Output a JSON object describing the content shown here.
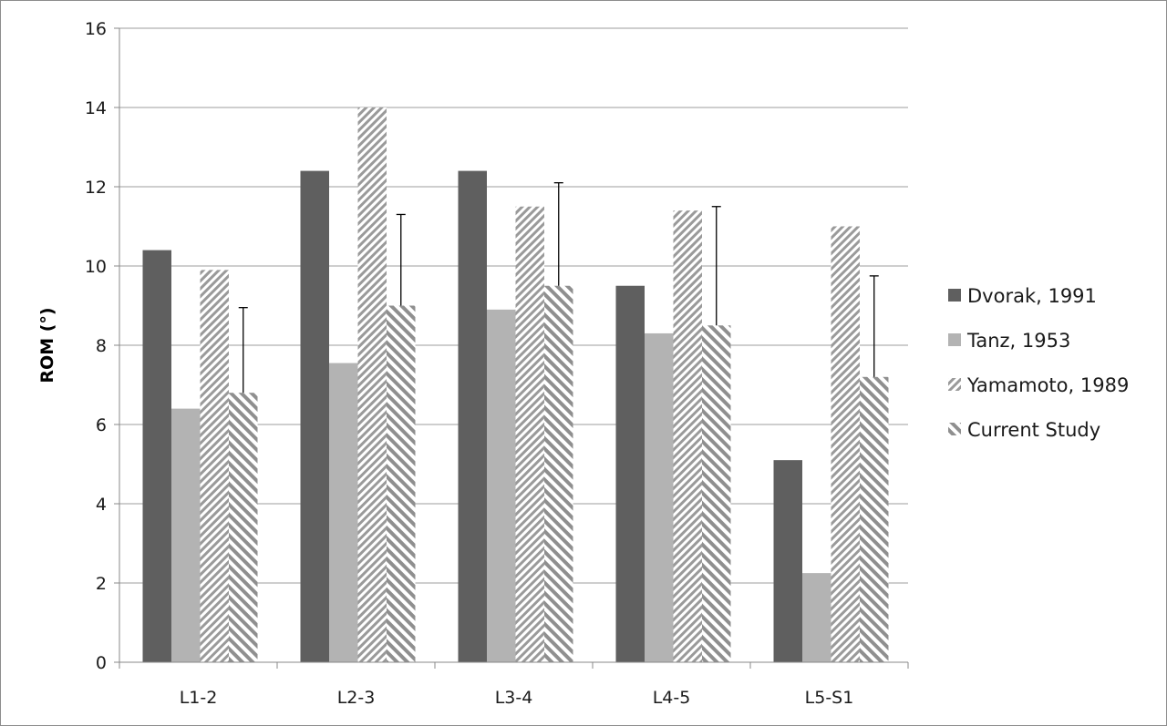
{
  "chart_data": {
    "type": "bar",
    "title": "",
    "xlabel": "",
    "ylabel": "ROM (°)",
    "ylim": [
      0,
      16
    ],
    "yticks": [
      0,
      2,
      4,
      6,
      8,
      10,
      12,
      14,
      16
    ],
    "grid": true,
    "legend_position": "right",
    "categories": [
      "L1-2",
      "L2-3",
      "L3-4",
      "L4-5",
      "L5-S1"
    ],
    "series": [
      {
        "name": "Dvorak, 1991",
        "values": [
          10.4,
          12.4,
          12.4,
          9.5,
          5.1
        ],
        "color": "#5f5f5f",
        "pattern": "solid"
      },
      {
        "name": "Tanz, 1953",
        "values": [
          6.4,
          7.55,
          8.9,
          8.3,
          2.25
        ],
        "color": "#b3b3b3",
        "pattern": "solid"
      },
      {
        "name": "Yamamoto, 1989",
        "values": [
          9.9,
          14.0,
          11.5,
          11.4,
          11.0
        ],
        "color": "#9a9a9a",
        "pattern": "diagonal-up"
      },
      {
        "name": "Current Study",
        "values": [
          6.8,
          9.0,
          9.5,
          8.5,
          7.2
        ],
        "color": "#9a9a9a",
        "pattern": "diagonal-down",
        "error_upper": [
          8.95,
          11.3,
          12.1,
          11.5,
          9.75
        ]
      }
    ]
  }
}
